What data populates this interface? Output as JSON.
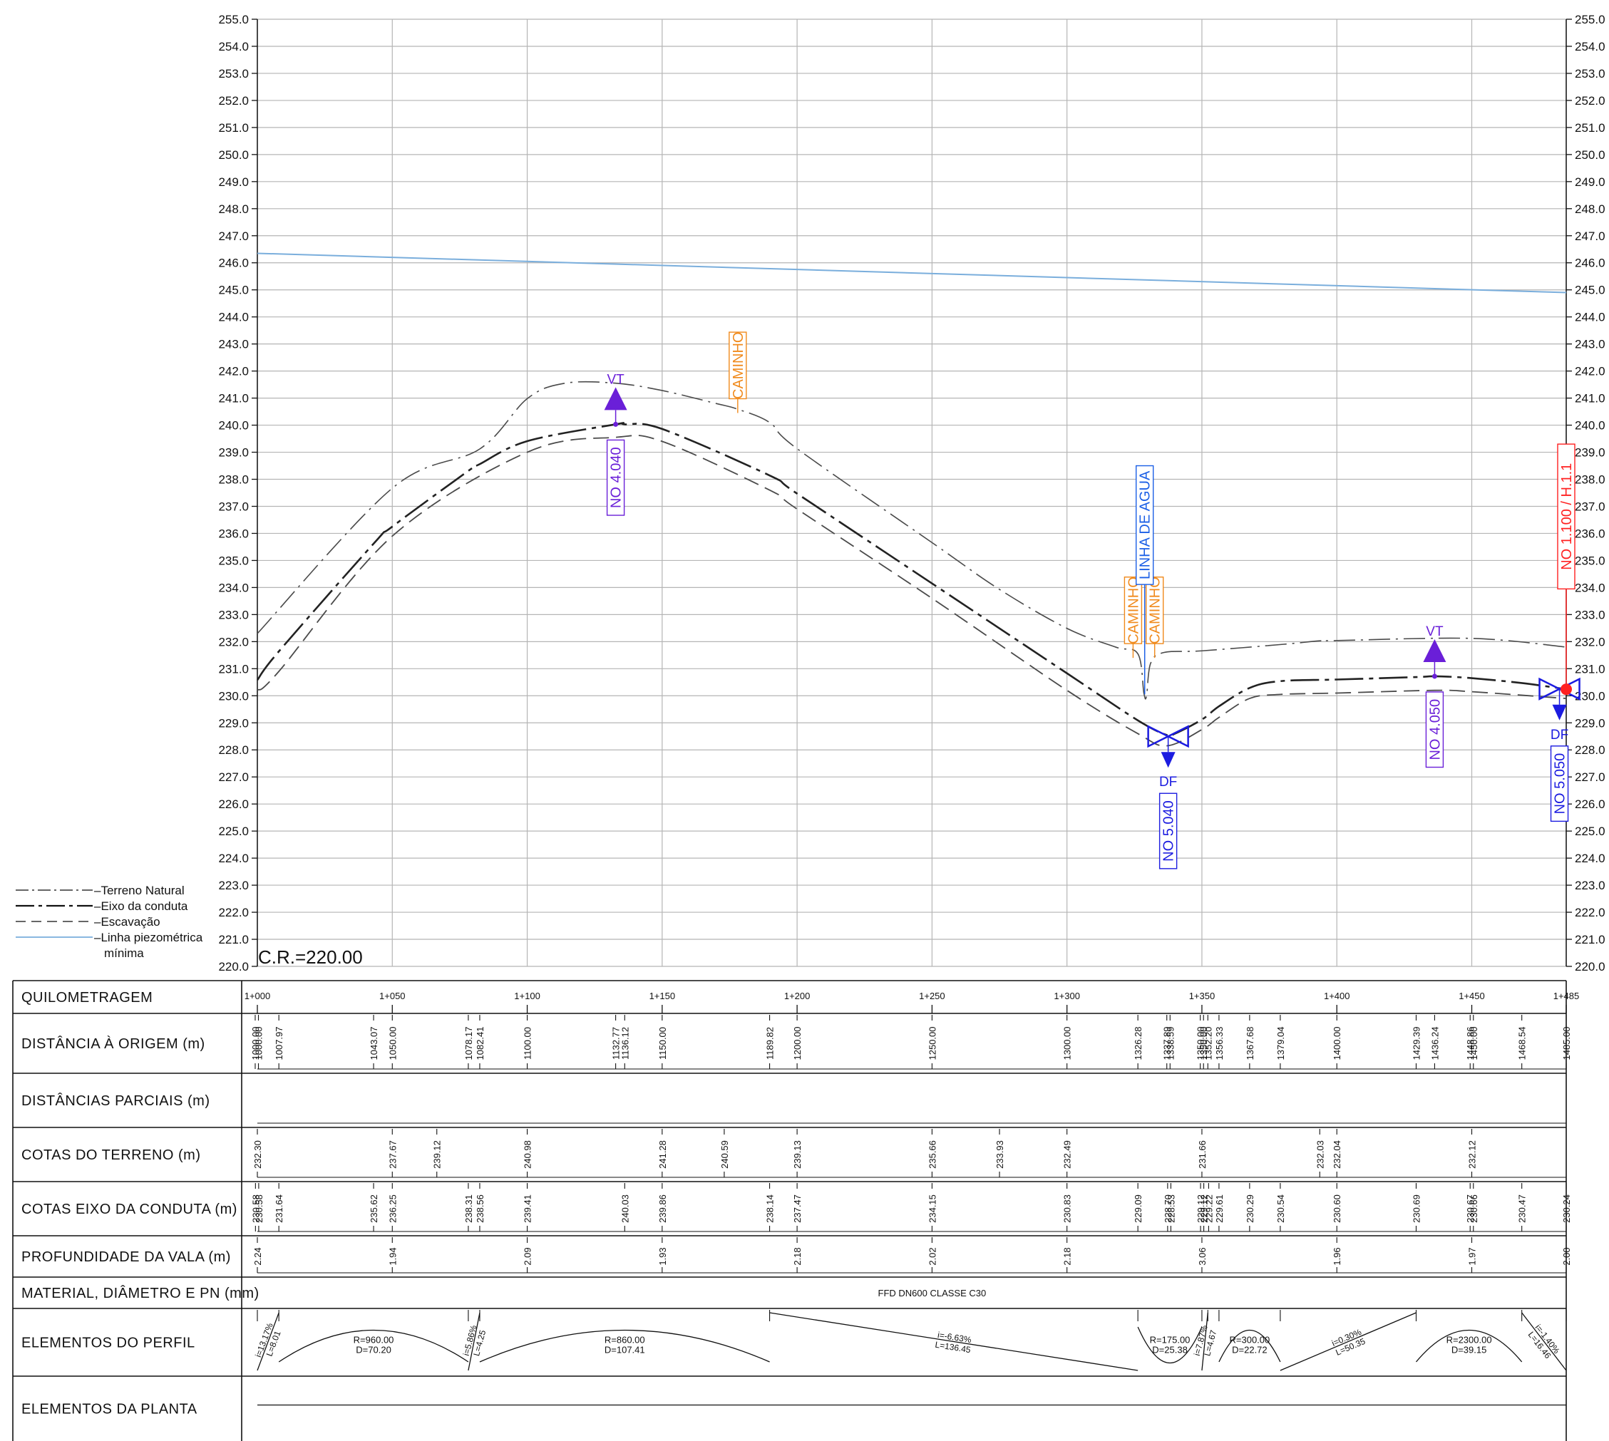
{
  "axis": {
    "ymin": 220,
    "ymax": 255,
    "step": 1,
    "xstart": 1000,
    "xend": 1485,
    "cr_label": "C.R.=220.00"
  },
  "colors": {
    "grid": "#b5b5b5",
    "profile": "#222222",
    "piezometric": "#7aaedc",
    "vt": "#6a1fd8",
    "df": "#1c1ce0",
    "caminho": "#f08a1c",
    "water": "#1b5fe6",
    "endnode": "#ff2020"
  },
  "legend": [
    {
      "label": "Terreno Natural",
      "style": "dashdot"
    },
    {
      "label": "Eixo da conduta",
      "style": "longdash"
    },
    {
      "label": "Escavação",
      "style": "dash"
    },
    {
      "label": "Linha piezométrica",
      "label2": "mínima",
      "style": "solid-blue"
    }
  ],
  "chart_data": {
    "type": "line",
    "x_unit": "distance (m)",
    "y_unit": "elevation (m)",
    "series": [
      {
        "name": "Terreno Natural",
        "x": [
          1000,
          1050,
          1082.41,
          1100,
          1114,
          1132.77,
          1150,
          1170,
          1178,
          1189.82,
          1200,
          1250,
          1275,
          1300,
          1318,
          1326.28,
          1328.5,
          1329.5,
          1331,
          1336,
          1350,
          1380,
          1393.67,
          1400,
          1450,
          1485
        ],
        "y": [
          232.3,
          237.67,
          239.12,
          240.98,
          241.55,
          241.55,
          241.28,
          240.8,
          240.59,
          240.1,
          239.13,
          235.66,
          233.93,
          232.49,
          231.8,
          231.55,
          230.1,
          230.0,
          231.2,
          231.6,
          231.66,
          231.9,
          232.03,
          232.04,
          232.12,
          231.8
        ]
      },
      {
        "name": "Eixo da conduta",
        "x": [
          1000,
          1007.97,
          1043.07,
          1050,
          1078.17,
          1082.41,
          1100,
          1132.77,
          1136.12,
          1150,
          1189.82,
          1200,
          1250,
          1300,
          1326.28,
          1337,
          1340,
          1350,
          1356.33,
          1367.68,
          1379.04,
          1400,
          1429.39,
          1436.24,
          1448.86,
          1468.54,
          1485
        ],
        "y": [
          230.58,
          231.64,
          235.62,
          236.25,
          238.31,
          238.56,
          239.41,
          240.03,
          240.03,
          239.86,
          238.14,
          237.47,
          234.15,
          230.83,
          229.09,
          228.55,
          228.6,
          229.12,
          229.61,
          230.29,
          230.54,
          230.6,
          230.69,
          230.72,
          230.66,
          230.47,
          230.24
        ]
      },
      {
        "name": "Escavação",
        "x": [
          1000,
          1007.97,
          1050,
          1100,
          1132.77,
          1150,
          1189.82,
          1200,
          1250,
          1300,
          1326.28,
          1337,
          1350,
          1356.33,
          1367.68,
          1379.04,
          1400,
          1436.24,
          1450,
          1485
        ],
        "y": [
          230.2,
          230.9,
          235.9,
          239.0,
          239.55,
          239.4,
          237.6,
          236.9,
          233.6,
          230.2,
          228.6,
          228.15,
          228.75,
          229.2,
          229.9,
          230.05,
          230.1,
          230.2,
          230.15,
          229.9
        ]
      },
      {
        "name": "Linha piezométrica mínima",
        "x": [
          1000,
          1485
        ],
        "y": [
          246.35,
          244.9
        ]
      }
    ],
    "grid": true,
    "ylim": [
      220,
      255
    ]
  },
  "markers": {
    "vt": [
      {
        "label": "VT",
        "node": "NO 4.040",
        "x": 1132.77,
        "y": 240.03
      },
      {
        "label": "VT",
        "node": "NO 4.050",
        "x": 1436.24,
        "y": 230.72
      }
    ],
    "df": [
      {
        "label": "DF",
        "node": "NO 5.040",
        "x": 1337.5,
        "y": 228.5
      },
      {
        "label": "DF",
        "node": "NO 5.050",
        "x": 1482.5,
        "y": 230.25
      }
    ],
    "caminho": [
      {
        "label": "CAMINHO",
        "x": 1178,
        "y": 240.45
      },
      {
        "label": "CAMINHO",
        "x": 1324.5,
        "y": 231.4
      },
      {
        "label": "CAMINHO",
        "x": 1332.5,
        "y": 231.4
      }
    ],
    "water": {
      "label": "LINHA DE AGUA",
      "x": 1328.8,
      "y": 230.05
    },
    "endnode": {
      "label": "NO 1.100 / H.1.1",
      "x": 1485,
      "y": 230.24
    }
  },
  "table": {
    "rows": [
      {
        "id": "quilometragem",
        "label": "QUILOMETRAGEM"
      },
      {
        "id": "distancia",
        "label": "DISTÂNCIA À ORIGEM (m)"
      },
      {
        "id": "parciais",
        "label": "DISTÂNCIAS PARCIAIS (m)"
      },
      {
        "id": "terreno",
        "label": "COTAS DO TERRENO (m)"
      },
      {
        "id": "eixo",
        "label": "COTAS EIXO DA CONDUTA (m)"
      },
      {
        "id": "profundidade",
        "label": "PROFUNDIDADE DA VALA (m)"
      },
      {
        "id": "material",
        "label": "MATERIAL, DIÂMETRO E PN (mm)"
      },
      {
        "id": "perfil",
        "label": "ELEMENTOS DO PERFIL"
      },
      {
        "id": "planta",
        "label": "ELEMENTOS DA PLANTA"
      }
    ],
    "km": [
      {
        "x": 1000,
        "t": "1+000"
      },
      {
        "x": 1050,
        "t": "1+050"
      },
      {
        "x": 1100,
        "t": "1+100"
      },
      {
        "x": 1150,
        "t": "1+150"
      },
      {
        "x": 1200,
        "t": "1+200"
      },
      {
        "x": 1250,
        "t": "1+250"
      },
      {
        "x": 1300,
        "t": "1+300"
      },
      {
        "x": 1350,
        "t": "1+350"
      },
      {
        "x": 1400,
        "t": "1+400"
      },
      {
        "x": 1450,
        "t": "1+450"
      },
      {
        "x": 1485,
        "t": "1+485"
      }
    ],
    "distancia": [
      {
        "x": 999.2,
        "t": "1000.00"
      },
      {
        "x": 1000.4,
        "t": "1000.00"
      },
      {
        "x": 1007.97,
        "t": "1007.97"
      },
      {
        "x": 1043.07,
        "t": "1043.07"
      },
      {
        "x": 1050,
        "t": "1050.00"
      },
      {
        "x": 1078.17,
        "t": "1078.17"
      },
      {
        "x": 1082.41,
        "t": "1082.41"
      },
      {
        "x": 1100,
        "t": "1100.00"
      },
      {
        "x": 1132.77,
        "t": "1132.77"
      },
      {
        "x": 1136.12,
        "t": "1136.12"
      },
      {
        "x": 1150,
        "t": "1150.00"
      },
      {
        "x": 1189.82,
        "t": "1189.82"
      },
      {
        "x": 1200,
        "t": "1200.00"
      },
      {
        "x": 1250,
        "t": "1250.00"
      },
      {
        "x": 1300,
        "t": "1300.00"
      },
      {
        "x": 1326.28,
        "t": "1326.28"
      },
      {
        "x": 1337.0,
        "t": "1337.89"
      },
      {
        "x": 1338.2,
        "t": "1338.59"
      },
      {
        "x": 1349.4,
        "t": "1350.00"
      },
      {
        "x": 1350.6,
        "t": "1350.00"
      },
      {
        "x": 1352.2,
        "t": "1352.20"
      },
      {
        "x": 1356.33,
        "t": "1356.33"
      },
      {
        "x": 1367.68,
        "t": "1367.68"
      },
      {
        "x": 1379.04,
        "t": "1379.04"
      },
      {
        "x": 1400,
        "t": "1400.00"
      },
      {
        "x": 1429.39,
        "t": "1429.39"
      },
      {
        "x": 1436.24,
        "t": "1436.24"
      },
      {
        "x": 1449.4,
        "t": "1448.86"
      },
      {
        "x": 1450.6,
        "t": "1450.00"
      },
      {
        "x": 1468.54,
        "t": "1468.54"
      },
      {
        "x": 1485,
        "t": "1485.00"
      }
    ],
    "terreno": [
      {
        "x": 1000,
        "t": "232.30"
      },
      {
        "x": 1050,
        "t": "237.67"
      },
      {
        "x": 1066.5,
        "t": "239.12"
      },
      {
        "x": 1100,
        "t": "240.98"
      },
      {
        "x": 1150,
        "t": "241.28"
      },
      {
        "x": 1173,
        "t": "240.59"
      },
      {
        "x": 1200,
        "t": "239.13"
      },
      {
        "x": 1250,
        "t": "235.66"
      },
      {
        "x": 1275,
        "t": "233.93"
      },
      {
        "x": 1300,
        "t": "232.49"
      },
      {
        "x": 1350,
        "t": "231.66"
      },
      {
        "x": 1393.67,
        "t": "232.03"
      },
      {
        "x": 1400,
        "t": "232.04"
      },
      {
        "x": 1450,
        "t": "232.12"
      }
    ],
    "eixo": [
      {
        "x": 999.3,
        "t": "230.58"
      },
      {
        "x": 1000.5,
        "t": "230.58"
      },
      {
        "x": 1007.97,
        "t": "231.64"
      },
      {
        "x": 1043.07,
        "t": "235.62"
      },
      {
        "x": 1050,
        "t": "236.25"
      },
      {
        "x": 1078.17,
        "t": "238.31"
      },
      {
        "x": 1082.41,
        "t": "238.56"
      },
      {
        "x": 1100,
        "t": "239.41"
      },
      {
        "x": 1136.12,
        "t": "240.03"
      },
      {
        "x": 1150,
        "t": "239.86"
      },
      {
        "x": 1189.82,
        "t": "238.14"
      },
      {
        "x": 1200,
        "t": "237.47"
      },
      {
        "x": 1250,
        "t": "234.15"
      },
      {
        "x": 1300,
        "t": "230.83"
      },
      {
        "x": 1326.28,
        "t": "229.09"
      },
      {
        "x": 1337.3,
        "t": "228.70"
      },
      {
        "x": 1338.5,
        "t": "228.53"
      },
      {
        "x": 1349.5,
        "t": "229.12"
      },
      {
        "x": 1350.7,
        "t": "229.12"
      },
      {
        "x": 1352.5,
        "t": "229.22"
      },
      {
        "x": 1356.33,
        "t": "229.61"
      },
      {
        "x": 1367.68,
        "t": "230.29"
      },
      {
        "x": 1379.04,
        "t": "230.54"
      },
      {
        "x": 1400,
        "t": "230.60"
      },
      {
        "x": 1429.39,
        "t": "230.69"
      },
      {
        "x": 1449.4,
        "t": "230.67"
      },
      {
        "x": 1450.6,
        "t": "230.66"
      },
      {
        "x": 1468.54,
        "t": "230.47"
      },
      {
        "x": 1485,
        "t": "230.24"
      }
    ],
    "profundidade": [
      {
        "x": 1000,
        "t": "2.24"
      },
      {
        "x": 1050,
        "t": "1.94"
      },
      {
        "x": 1100,
        "t": "2.09"
      },
      {
        "x": 1150,
        "t": "1.93"
      },
      {
        "x": 1200,
        "t": "2.18"
      },
      {
        "x": 1250,
        "t": "2.02"
      },
      {
        "x": 1300,
        "t": "2.18"
      },
      {
        "x": 1350,
        "t": "3.06"
      },
      {
        "x": 1400,
        "t": "1.96"
      },
      {
        "x": 1450,
        "t": "1.97"
      },
      {
        "x": 1485,
        "t": "2.00"
      }
    ],
    "material_text": "FFD DN600 CLASSE C30",
    "perfil_bounds": [
      1000,
      1007.97,
      1078.17,
      1082.41,
      1189.82,
      1326.28,
      1350.0,
      1352.2,
      1356.33,
      1379.04,
      1429.39,
      1468.54,
      1485
    ],
    "perfil": [
      {
        "x0": 1000,
        "x1": 1007.97,
        "kind": "grade",
        "dir": "up",
        "l1": "i=13.17%",
        "l2": "L=8.01"
      },
      {
        "x0": 1007.97,
        "x1": 1078.17,
        "kind": "curve",
        "dir": "convex",
        "l1": "R=960.00",
        "l2": "D=70.20"
      },
      {
        "x0": 1078.17,
        "x1": 1082.41,
        "kind": "grade",
        "dir": "up",
        "l1": "i=5.86%",
        "l2": "L=4.25"
      },
      {
        "x0": 1082.41,
        "x1": 1189.82,
        "kind": "curve",
        "dir": "convex",
        "l1": "R=860.00",
        "l2": "D=107.41"
      },
      {
        "x0": 1189.82,
        "x1": 1326.28,
        "kind": "grade",
        "dir": "down",
        "l1": "i=-6.63%",
        "l2": "L=136.45"
      },
      {
        "x0": 1326.28,
        "x1": 1350.0,
        "kind": "curve",
        "dir": "concave",
        "l1": "R=175.00",
        "l2": "D=25.38"
      },
      {
        "x0": 1350.0,
        "x1": 1352.2,
        "kind": "grade",
        "dir": "up",
        "l1": "i=7.87%",
        "l2": "L=4.67"
      },
      {
        "x0": 1356.33,
        "x1": 1379.04,
        "kind": "curve",
        "dir": "convex",
        "l1": "R=300.00",
        "l2": "D=22.72"
      },
      {
        "x0": 1379.04,
        "x1": 1429.39,
        "kind": "grade",
        "dir": "up",
        "l1": "i=0.30%",
        "l2": "L=50.35"
      },
      {
        "x0": 1429.39,
        "x1": 1468.54,
        "kind": "curve",
        "dir": "convex",
        "l1": "R=2300.00",
        "l2": "D=39.15"
      },
      {
        "x0": 1468.54,
        "x1": 1485,
        "kind": "grade",
        "dir": "down",
        "l1": "i=-1.40%",
        "l2": "L=16.46"
      }
    ]
  }
}
